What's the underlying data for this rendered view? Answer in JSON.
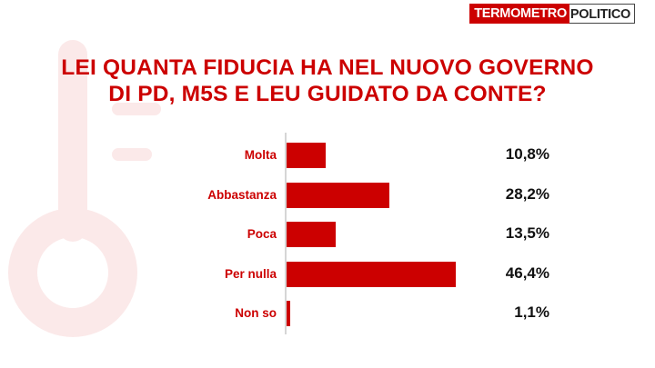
{
  "logo": {
    "part1": "TERMOMETRO",
    "part2": "POLITICO"
  },
  "chart_data": {
    "type": "bar",
    "orientation": "horizontal",
    "title": "LEI QUANTA FIDUCIA HA NEL NUOVO GOVERNO DI PD, M5S E LEU GUIDATO DA CONTE?",
    "title_lines": [
      "LEI QUANTA FIDUCIA HA NEL NUOVO GOVERNO",
      "DI PD, M5S E LEU GUIDATO DA CONTE?"
    ],
    "categories": [
      "Molta",
      "Abbastanza",
      "Poca",
      "Per nulla",
      "Non so"
    ],
    "values": [
      10.8,
      28.2,
      13.5,
      46.4,
      1.1
    ],
    "value_labels": [
      "10,8%",
      "28,2%",
      "13,5%",
      "46,4%",
      "1,1%"
    ],
    "unit": "%",
    "xlim": [
      0,
      100
    ],
    "grid": false,
    "bar_color": "#cc0000",
    "label_color": "#cc0000"
  }
}
